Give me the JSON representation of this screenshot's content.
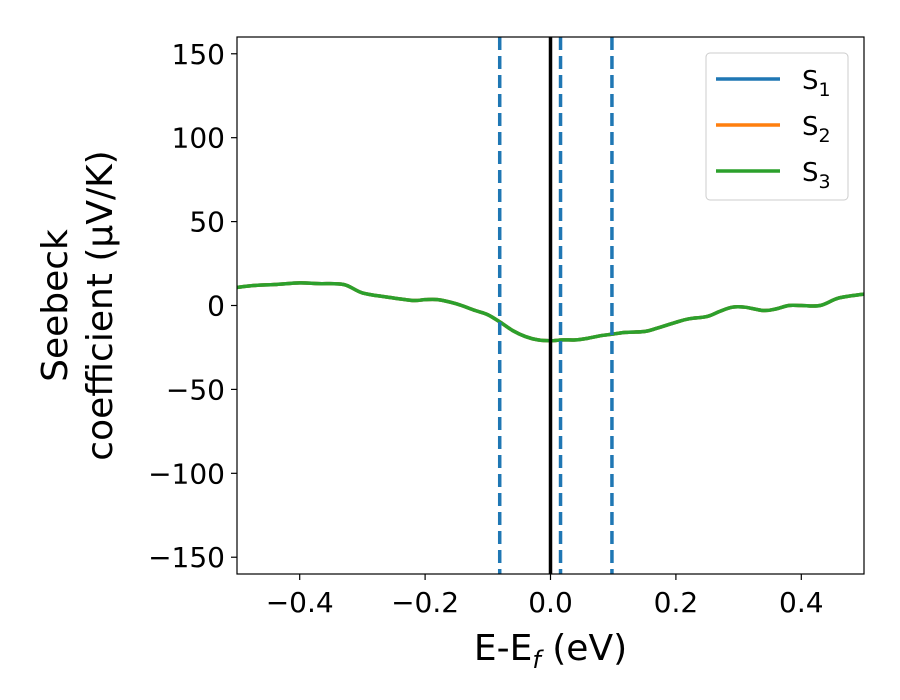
{
  "chart_data": {
    "type": "line",
    "xlabel": "E-E",
    "xlabel_sub": "f",
    "xlabel_unit": " (eV)",
    "ylabel_line1": "Seebeck",
    "ylabel_line2": "coefficient  (μV/K)",
    "xlim": [
      -0.5,
      0.5
    ],
    "ylim": [
      -160,
      160
    ],
    "xticks": [
      {
        "value": -0.4,
        "label": "−0.4"
      },
      {
        "value": -0.2,
        "label": "−0.2"
      },
      {
        "value": 0.0,
        "label": "0.0"
      },
      {
        "value": 0.2,
        "label": "0.2"
      },
      {
        "value": 0.4,
        "label": "0.4"
      }
    ],
    "yticks": [
      {
        "value": 150,
        "label": "150"
      },
      {
        "value": 100,
        "label": "100"
      },
      {
        "value": 50,
        "label": "50"
      },
      {
        "value": 0,
        "label": "0"
      },
      {
        "value": -50,
        "label": "−50"
      },
      {
        "value": -100,
        "label": "−100"
      },
      {
        "value": -150,
        "label": "−150"
      }
    ],
    "legend_position": "top-right",
    "grid": false,
    "vlines": [
      {
        "x": 0.0,
        "color": "#000000",
        "style": "solid"
      },
      {
        "x": -0.081,
        "color": "#1f77b4",
        "style": "dashed"
      },
      {
        "x": 0.016,
        "color": "#1f77b4",
        "style": "dashed"
      },
      {
        "x": 0.098,
        "color": "#1f77b4",
        "style": "dashed"
      }
    ],
    "x": [
      -0.5,
      -0.47,
      -0.44,
      -0.4,
      -0.37,
      -0.33,
      -0.3,
      -0.26,
      -0.22,
      -0.2,
      -0.18,
      -0.15,
      -0.12,
      -0.1,
      -0.08,
      -0.06,
      -0.04,
      -0.02,
      0.0,
      0.02,
      0.04,
      0.06,
      0.08,
      0.1,
      0.12,
      0.15,
      0.17,
      0.2,
      0.22,
      0.25,
      0.27,
      0.29,
      0.31,
      0.34,
      0.36,
      0.38,
      0.4,
      0.43,
      0.46,
      0.5
    ],
    "series": [
      {
        "name": "S",
        "name_sub": "1",
        "color": "#1f77b4",
        "values": [
          10.8,
          12,
          12.5,
          13.5,
          13,
          12.5,
          7.5,
          5,
          3,
          3.5,
          3.5,
          1,
          -3,
          -5.5,
          -10,
          -15,
          -18.5,
          -20.5,
          -21,
          -20.5,
          -20.5,
          -19.5,
          -18,
          -17,
          -16,
          -15.5,
          -13.5,
          -10,
          -8,
          -6.5,
          -3.5,
          -1,
          -1,
          -3,
          -2,
          0,
          0,
          0,
          4.5,
          6.8
        ]
      },
      {
        "name": "S",
        "name_sub": "2",
        "color": "#ff7f0e",
        "values": [
          10.8,
          12,
          12.5,
          13.5,
          13,
          12.5,
          7.5,
          5,
          3,
          3.5,
          3.5,
          1,
          -3,
          -5.5,
          -10,
          -15,
          -18.5,
          -20.5,
          -21,
          -20.5,
          -20.5,
          -19.5,
          -18,
          -17,
          -16,
          -15.5,
          -13.5,
          -10,
          -8,
          -6.5,
          -3.5,
          -1,
          -1,
          -3,
          -2,
          0,
          0,
          0,
          4.5,
          6.8
        ]
      },
      {
        "name": "S",
        "name_sub": "3",
        "color": "#2ca02c",
        "values": [
          10.8,
          12,
          12.5,
          13.5,
          13,
          12.5,
          7.5,
          5,
          3,
          3.5,
          3.5,
          1,
          -3,
          -5.5,
          -10,
          -15,
          -18.5,
          -20.5,
          -21,
          -20.5,
          -20.5,
          -19.5,
          -18,
          -17,
          -16,
          -15.5,
          -13.5,
          -10,
          -8,
          -6.5,
          -3.5,
          -1,
          -1,
          -3,
          -2,
          0,
          0,
          0,
          4.5,
          6.8
        ]
      }
    ]
  }
}
